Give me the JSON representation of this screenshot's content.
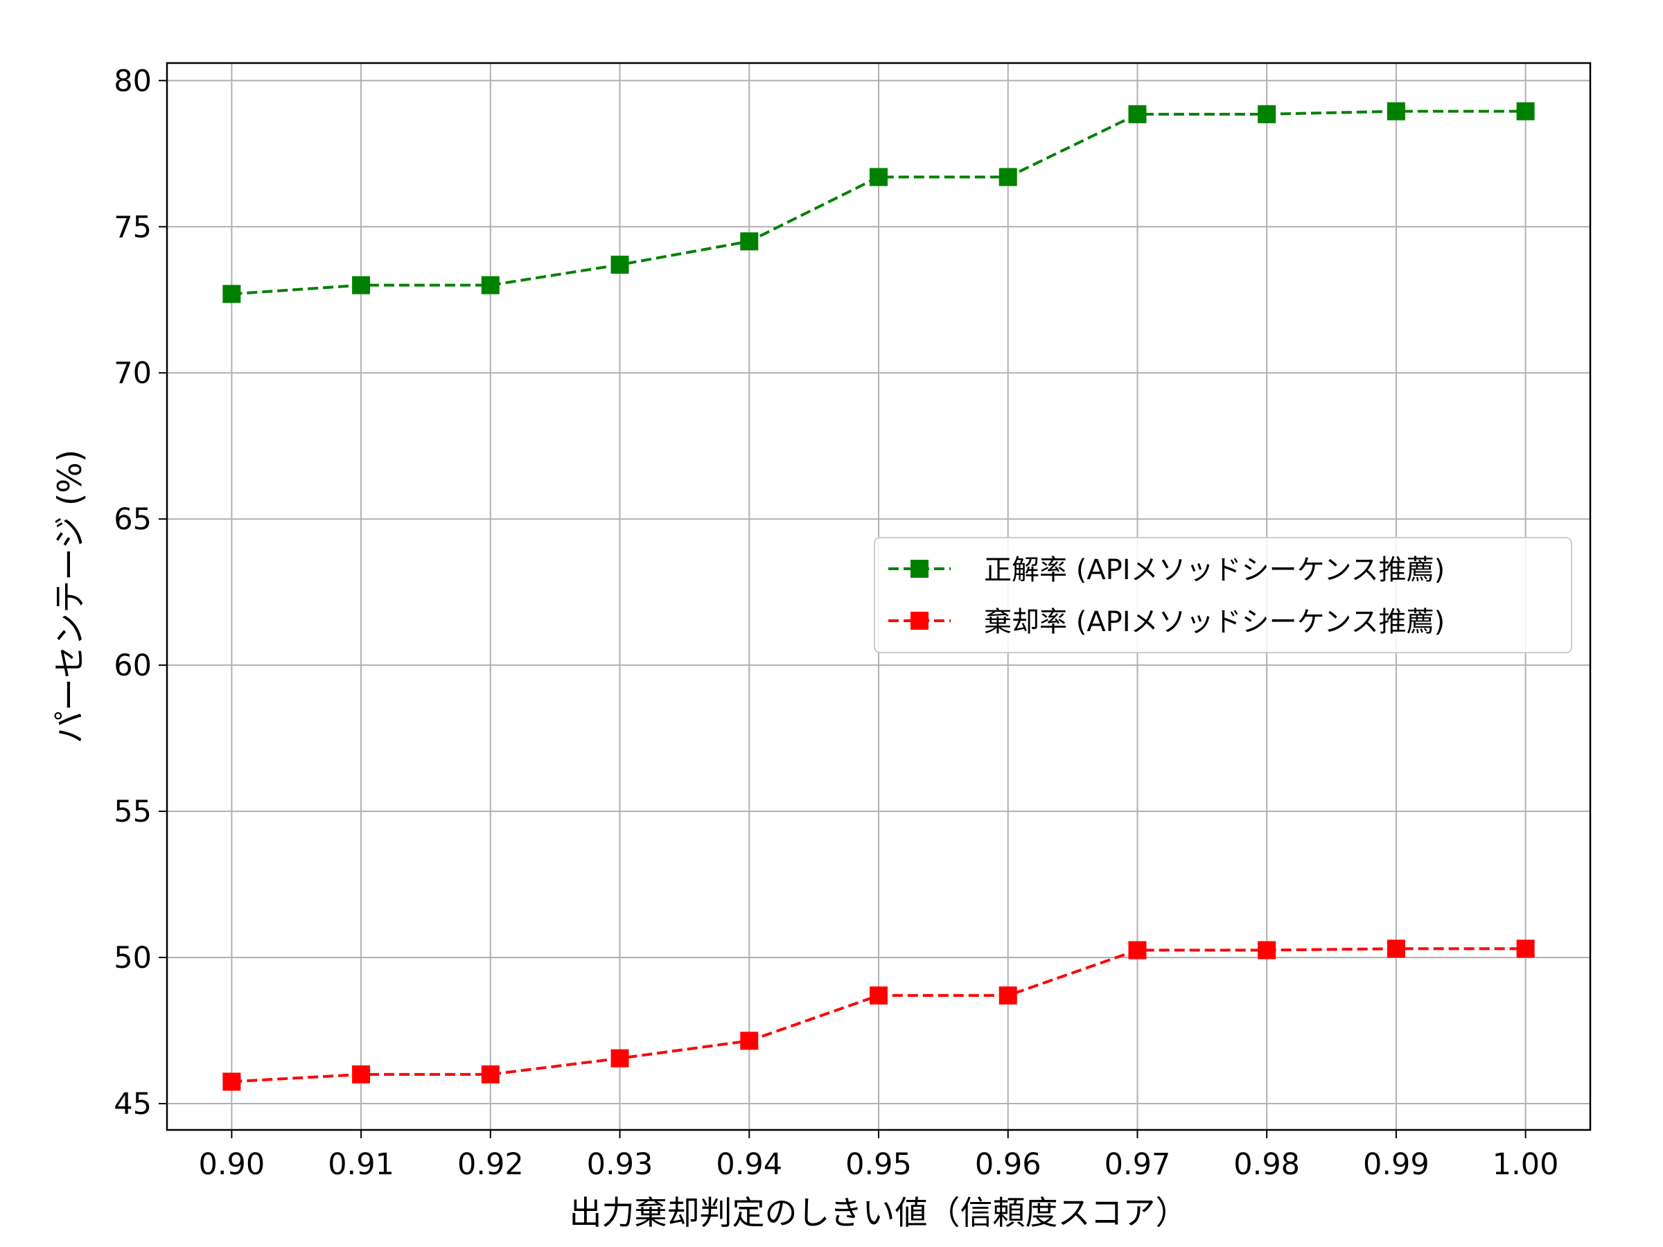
{
  "chart_data": {
    "type": "line",
    "title": "",
    "xlabel": "出力棄却判定のしきい値（信頼度スコア）",
    "ylabel": "パーセンテージ (%)",
    "x": [
      0.9,
      0.91,
      0.92,
      0.93,
      0.94,
      0.95,
      0.96,
      0.97,
      0.98,
      0.99,
      1.0
    ],
    "x_tick_labels": [
      "0.90",
      "0.91",
      "0.92",
      "0.93",
      "0.94",
      "0.95",
      "0.96",
      "0.97",
      "0.98",
      "0.99",
      "1.00"
    ],
    "xlim": [
      0.895,
      1.005
    ],
    "y_ticks": [
      45,
      50,
      55,
      60,
      65,
      70,
      75,
      80
    ],
    "y_tick_labels": [
      "45",
      "50",
      "55",
      "60",
      "65",
      "70",
      "75",
      "80"
    ],
    "ylim": [
      44.1,
      80.6
    ],
    "grid": true,
    "legend_position": "center-right",
    "series": [
      {
        "name": "正解率 (APIメソッドシーケンス推薦)",
        "color": "#008000",
        "marker": "square",
        "line_style": "dashed",
        "values": [
          72.7,
          73.0,
          73.0,
          73.7,
          74.5,
          76.7,
          76.7,
          78.85,
          78.85,
          78.95,
          78.95
        ]
      },
      {
        "name": "棄却率 (APIメソッドシーケンス推薦)",
        "color": "#ff0000",
        "marker": "square",
        "line_style": "dashed",
        "values": [
          45.75,
          46.0,
          46.0,
          46.55,
          47.15,
          48.7,
          48.7,
          50.25,
          50.25,
          50.3,
          50.3
        ]
      }
    ]
  }
}
